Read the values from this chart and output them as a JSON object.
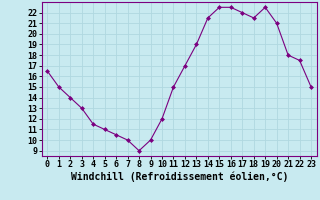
{
  "x": [
    0,
    1,
    2,
    3,
    4,
    5,
    6,
    7,
    8,
    9,
    10,
    11,
    12,
    13,
    14,
    15,
    16,
    17,
    18,
    19,
    20,
    21,
    22,
    23
  ],
  "y": [
    16.5,
    15.0,
    14.0,
    13.0,
    11.5,
    11.0,
    10.5,
    10.0,
    9.0,
    10.0,
    12.0,
    15.0,
    17.0,
    19.0,
    21.5,
    22.5,
    22.5,
    22.0,
    21.5,
    22.5,
    21.0,
    18.0,
    17.5,
    15.0
  ],
  "xlim": [
    -0.5,
    23.5
  ],
  "ylim": [
    8.5,
    23
  ],
  "yticks": [
    9,
    10,
    11,
    12,
    13,
    14,
    15,
    16,
    17,
    18,
    19,
    20,
    21,
    22
  ],
  "xticks": [
    0,
    1,
    2,
    3,
    4,
    5,
    6,
    7,
    8,
    9,
    10,
    11,
    12,
    13,
    14,
    15,
    16,
    17,
    18,
    19,
    20,
    21,
    22,
    23
  ],
  "xlabel": "Windchill (Refroidissement éolien,°C)",
  "line_color": "#7b0080",
  "marker": "D",
  "marker_size": 2.0,
  "bg_color": "#c8eaf0",
  "grid_color": "#b0d8e0",
  "xlabel_fontsize": 7.0,
  "tick_fontsize": 6.0,
  "title": ""
}
